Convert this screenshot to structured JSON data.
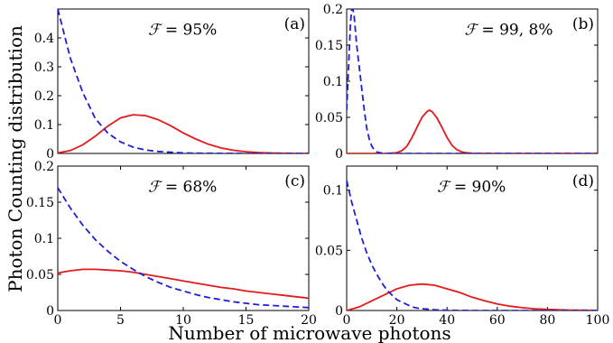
{
  "figure": {
    "ylabel": "Photon Counting  distribution",
    "xlabel": "Number of microwave photons"
  },
  "colors": {
    "solid": "#e41a1c",
    "dashed": "#1f1fd6",
    "frame": "#000000"
  },
  "chart_data": [
    {
      "type": "line",
      "panel_label": "(a)",
      "fidelity_symbol": "ℱ",
      "fidelity_text": " = 95%",
      "xlim": [
        0,
        20
      ],
      "ylim": [
        0,
        0.5
      ],
      "xticks": [],
      "xtick_labels": [],
      "yticks": [
        0,
        0.1,
        0.2,
        0.3,
        0.4
      ],
      "ytick_labels": [
        "0",
        "0.1",
        "0.2",
        "0.3",
        "0.4"
      ],
      "series": [
        {
          "style": "solid",
          "x": [
            0,
            1,
            2,
            3,
            4,
            5,
            6,
            7,
            8,
            9,
            10,
            11,
            12,
            13,
            14,
            15,
            16,
            17,
            18,
            19,
            20
          ],
          "y": [
            0.002,
            0.01,
            0.03,
            0.06,
            0.095,
            0.123,
            0.134,
            0.131,
            0.117,
            0.096,
            0.071,
            0.05,
            0.032,
            0.019,
            0.011,
            0.006,
            0.003,
            0.0015,
            0.0007,
            0.0003,
            0.0001
          ]
        },
        {
          "style": "dashed",
          "x": [
            0,
            1,
            2,
            3,
            4,
            5,
            6,
            7,
            8,
            9,
            10,
            11,
            12,
            13,
            14,
            15,
            16,
            17,
            18,
            19,
            20
          ],
          "y": [
            0.5,
            0.33,
            0.21,
            0.12,
            0.07,
            0.04,
            0.022,
            0.012,
            0.007,
            0.004,
            0.002,
            0.001,
            0.0006,
            0.0003,
            0.0002,
            0.0001,
            0,
            0,
            0,
            0,
            0
          ]
        }
      ]
    },
    {
      "type": "line",
      "panel_label": "(b)",
      "fidelity_symbol": "ℱ",
      "fidelity_text": " = 99, 8%",
      "xlim": [
        0,
        100
      ],
      "ylim": [
        0,
        0.2
      ],
      "xticks": [],
      "xtick_labels": [],
      "yticks": [
        0,
        0.05,
        0.1,
        0.15,
        0.2
      ],
      "ytick_labels": [
        "0",
        "0.05",
        "0.1",
        "0.15",
        "0.2"
      ],
      "series": [
        {
          "style": "solid",
          "x": [
            0,
            16,
            20,
            22,
            24,
            26,
            28,
            30,
            32,
            33,
            34,
            36,
            38,
            40,
            42,
            44,
            46,
            48,
            50,
            55,
            60,
            100
          ],
          "y": [
            0,
            0,
            0.001,
            0.004,
            0.01,
            0.022,
            0.036,
            0.05,
            0.058,
            0.06,
            0.058,
            0.049,
            0.036,
            0.022,
            0.011,
            0.005,
            0.002,
            0.0007,
            0.0002,
            0,
            0,
            0
          ]
        },
        {
          "style": "dashed",
          "x": [
            0,
            0.5,
            1,
            1.5,
            2,
            2.5,
            3,
            3.5,
            4,
            5,
            6,
            7,
            8,
            9,
            10,
            11,
            12,
            14,
            16,
            20,
            30,
            100
          ],
          "y": [
            0.06,
            0.1,
            0.14,
            0.18,
            0.2,
            0.2,
            0.19,
            0.17,
            0.15,
            0.12,
            0.09,
            0.06,
            0.035,
            0.02,
            0.01,
            0.005,
            0.002,
            0.0005,
            0.0001,
            0,
            0,
            0
          ]
        }
      ]
    },
    {
      "type": "line",
      "panel_label": "(c)",
      "fidelity_symbol": "ℱ",
      "fidelity_text": " = 68%",
      "xlim": [
        0,
        20
      ],
      "ylim": [
        0,
        0.2
      ],
      "xticks": [
        0,
        5,
        10,
        15,
        20
      ],
      "xtick_labels": [
        "0",
        "5",
        "10",
        "15",
        "20"
      ],
      "yticks": [
        0,
        0.05,
        0.1,
        0.15,
        0.2
      ],
      "ytick_labels": [
        "0",
        "0.05",
        "0.1",
        "0.15",
        "0.2"
      ],
      "series": [
        {
          "style": "solid",
          "x": [
            0,
            1,
            2,
            3,
            4,
            5,
            6,
            7,
            8,
            9,
            10,
            11,
            12,
            13,
            14,
            15,
            16,
            17,
            18,
            19,
            20
          ],
          "y": [
            0.052,
            0.055,
            0.057,
            0.057,
            0.056,
            0.055,
            0.053,
            0.05,
            0.047,
            0.044,
            0.041,
            0.038,
            0.035,
            0.032,
            0.03,
            0.027,
            0.025,
            0.023,
            0.021,
            0.019,
            0.017
          ]
        },
        {
          "style": "dashed",
          "x": [
            0,
            1,
            2,
            3,
            4,
            5,
            6,
            7,
            8,
            9,
            10,
            11,
            12,
            13,
            14,
            15,
            16,
            17,
            18,
            19,
            20
          ],
          "y": [
            0.17,
            0.142,
            0.118,
            0.098,
            0.082,
            0.068,
            0.057,
            0.047,
            0.039,
            0.032,
            0.027,
            0.022,
            0.018,
            0.015,
            0.012,
            0.01,
            0.008,
            0.007,
            0.006,
            0.005,
            0.004
          ]
        }
      ]
    },
    {
      "type": "line",
      "panel_label": "(d)",
      "fidelity_symbol": "ℱ",
      "fidelity_text": " = 90%",
      "xlim": [
        0,
        100
      ],
      "ylim": [
        0,
        0.12
      ],
      "xticks": [
        0,
        20,
        40,
        60,
        80,
        100
      ],
      "xtick_labels": [
        "0",
        "20",
        "40",
        "60",
        "80",
        "100"
      ],
      "yticks": [
        0,
        0.05,
        0.1
      ],
      "ytick_labels": [
        "0",
        "0.05",
        "0.1"
      ],
      "series": [
        {
          "style": "solid",
          "x": [
            0,
            5,
            10,
            15,
            20,
            25,
            30,
            35,
            40,
            45,
            50,
            55,
            60,
            65,
            70,
            75,
            80,
            85,
            90,
            95,
            100
          ],
          "y": [
            0,
            0.003,
            0.008,
            0.013,
            0.018,
            0.021,
            0.022,
            0.021,
            0.018,
            0.015,
            0.011,
            0.008,
            0.0055,
            0.0036,
            0.0023,
            0.0014,
            0.0009,
            0.0005,
            0.0003,
            0.0002,
            0.0001
          ]
        },
        {
          "style": "dashed",
          "x": [
            0,
            2,
            4,
            6,
            8,
            10,
            12,
            14,
            16,
            18,
            20,
            22,
            24,
            26,
            28,
            30,
            35,
            40,
            50,
            60,
            100
          ],
          "y": [
            0.108,
            0.09,
            0.075,
            0.06,
            0.048,
            0.038,
            0.03,
            0.023,
            0.017,
            0.013,
            0.009,
            0.007,
            0.005,
            0.003,
            0.002,
            0.0015,
            0.0006,
            0.0002,
            0,
            0,
            0
          ]
        }
      ]
    }
  ]
}
